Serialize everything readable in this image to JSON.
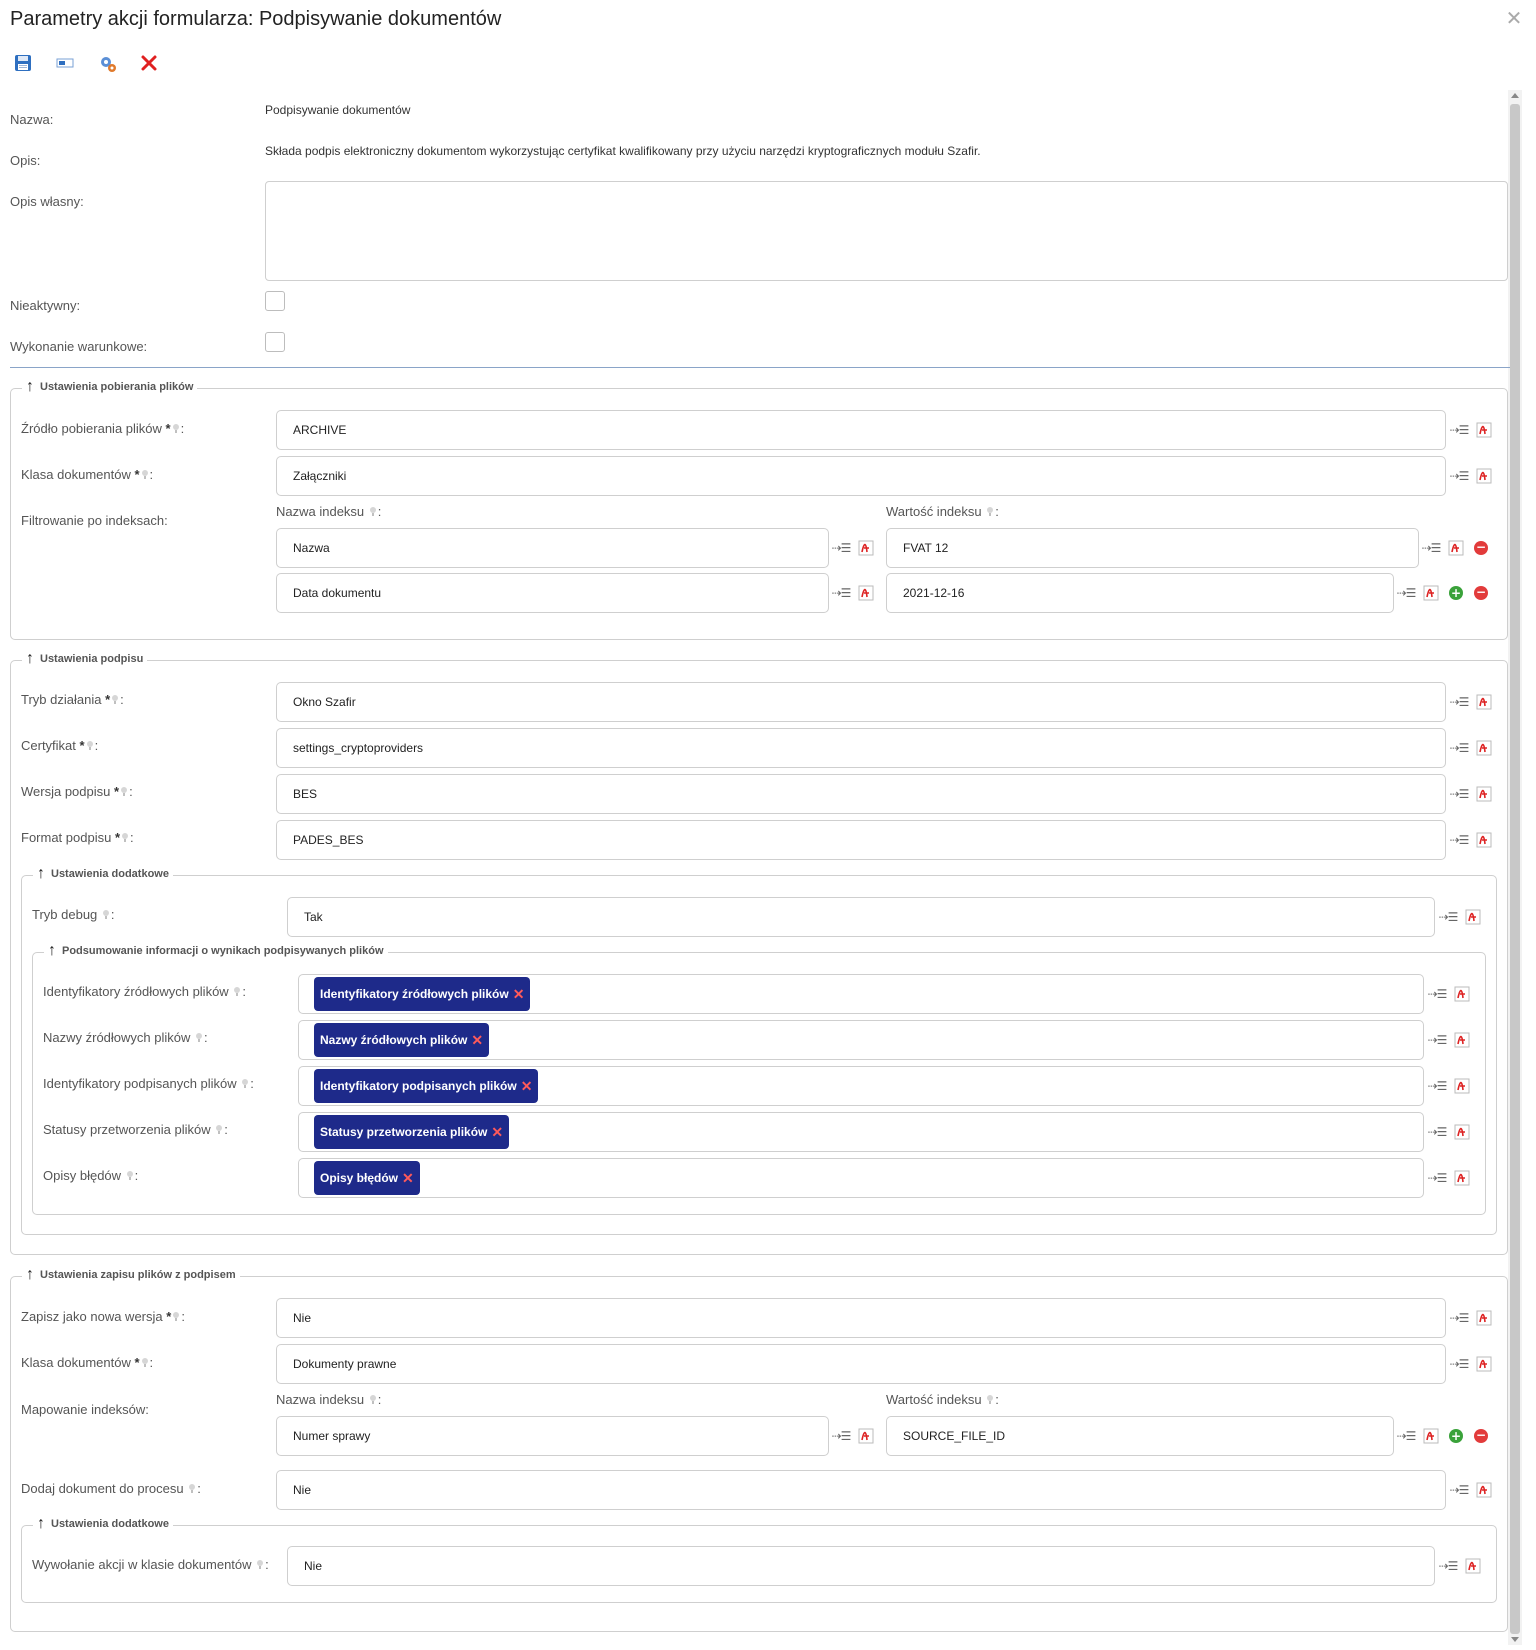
{
  "window": {
    "title": "Parametry akcji formularza: Podpisywanie dokumentów"
  },
  "toolbar": {
    "icons": [
      "save-icon",
      "field-icon",
      "settings-icon",
      "delete-icon"
    ]
  },
  "general": {
    "name_label": "Nazwa:",
    "name_value": "Podpisywanie dokumentów",
    "desc_label": "Opis:",
    "desc_value": "Składa podpis elektroniczny dokumentom wykorzystując certyfikat kwalifikowany przy użyciu narzędzi kryptograficznych modułu Szafir.",
    "own_desc_label": "Opis własny:",
    "inactive_label": "Nieaktywny:",
    "conditional_label": "Wykonanie warunkowe:"
  },
  "download": {
    "legend": "Ustawienia pobierania plików",
    "source_label": "Źródło pobierania plików",
    "source_value": "ARCHIVE",
    "class_label": "Klasa dokumentów",
    "class_value": "Załączniki",
    "filter_label": "Filtrowanie po indeksach:",
    "index_name_header": "Nazwa indeksu",
    "index_value_header": "Wartość indeksu",
    "rows": [
      {
        "name": "Nazwa",
        "value": "FVAT 12"
      },
      {
        "name": "Data dokumentu",
        "value": "2021-12-16"
      }
    ]
  },
  "signature": {
    "legend": "Ustawienia podpisu",
    "mode_label": "Tryb działania",
    "mode_value": "Okno Szafir",
    "cert_label": "Certyfikat",
    "cert_value": "settings_cryptoproviders",
    "version_label": "Wersja podpisu",
    "version_value": "BES",
    "format_label": "Format podpisu",
    "format_value": "PADES_BES",
    "extra": {
      "legend": "Ustawienia dodatkowe",
      "debug_label": "Tryb debug",
      "debug_value": "Tak",
      "summary": {
        "legend": "Podsumowanie informacji o wynikach podpisywanych plików",
        "rows": [
          {
            "label": "Identyfikatory źródłowych plików",
            "tag": "Identyfikatory źródłowych plików"
          },
          {
            "label": "Nazwy źródłowych plików",
            "tag": "Nazwy źródłowych plików"
          },
          {
            "label": "Identyfikatory podpisanych plików",
            "tag": "Identyfikatory podpisanych plików"
          },
          {
            "label": "Statusy przetworzenia plików",
            "tag": "Statusy przetworzenia plików"
          },
          {
            "label": "Opisy błędów",
            "tag": "Opisy błędów"
          }
        ]
      }
    }
  },
  "save": {
    "legend": "Ustawienia zapisu plików z podpisem",
    "new_version_label": "Zapisz jako nowa wersja",
    "new_version_value": "Nie",
    "class_label": "Klasa dokumentów",
    "class_value": "Dokumenty prawne",
    "mapping_label": "Mapowanie indeksów:",
    "index_name_header": "Nazwa indeksu",
    "index_value_header": "Wartość indeksu",
    "map_name": "Numer sprawy",
    "map_value": "SOURCE_FILE_ID",
    "add_to_process_label": "Dodaj dokument do procesu",
    "add_to_process_value": "Nie",
    "extra": {
      "legend": "Ustawienia dodatkowe",
      "invoke_label": "Wywołanie akcji w klasie dokumentów",
      "invoke_value": "Nie"
    }
  }
}
